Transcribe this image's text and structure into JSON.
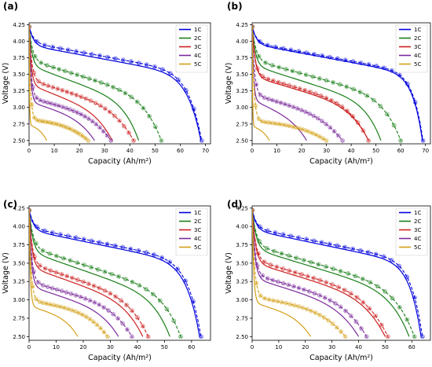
{
  "chart_data": [
    {
      "type": "line",
      "panel_label": "(a)",
      "xlabel": "Capacity (Ah/m²)",
      "ylabel": "Voltage (V)",
      "xlim": [
        0,
        72
      ],
      "ylim": [
        2.45,
        4.28
      ],
      "xticks": [
        0,
        10,
        20,
        30,
        40,
        50,
        60,
        70
      ],
      "yticks": [
        2.5,
        2.75,
        3.0,
        3.25,
        3.5,
        3.75,
        4.0,
        4.25
      ],
      "grid": false,
      "legend_position": "top-right",
      "series": [
        {
          "name": "1C",
          "color": "#0000dd",
          "end_capacity": 68.5,
          "fit_end_capacity": 68.2,
          "v_plateau": 3.98,
          "v_knee": 3.5,
          "shape": 6,
          "fit_dv": -0.04
        },
        {
          "name": "2C",
          "color": "#1a7f1a",
          "end_capacity": 52.5,
          "fit_end_capacity": 43.5,
          "v_plateau": 3.72,
          "v_knee": 3.1,
          "shape": 3.5,
          "fit_dv": -0.08
        },
        {
          "name": "3C",
          "color": "#cc2222",
          "end_capacity": 41.5,
          "fit_end_capacity": 33.0,
          "v_plateau": 3.42,
          "v_knee": 2.92,
          "shape": 2.5,
          "fit_dv": -0.07
        },
        {
          "name": "4C",
          "color": "#7b2a9c",
          "end_capacity": 32.5,
          "fit_end_capacity": 26.0,
          "v_plateau": 3.15,
          "v_knee": 2.82,
          "shape": 2.0,
          "fit_dv": -0.06
        },
        {
          "name": "5C",
          "color": "#d4a017",
          "end_capacity": 23.5,
          "fit_end_capacity": 7.0,
          "v_plateau": 2.82,
          "v_knee": 2.7,
          "shape": 1.5,
          "fit_dv": -0.08
        }
      ]
    },
    {
      "type": "line",
      "panel_label": "(b)",
      "xlabel": "Capacity (Ah/m²)",
      "ylabel": "Voltage (V)",
      "xlim": [
        0,
        72
      ],
      "ylim": [
        2.45,
        4.28
      ],
      "xticks": [
        0,
        10,
        20,
        30,
        40,
        50,
        60,
        70
      ],
      "yticks": [
        2.5,
        2.75,
        3.0,
        3.25,
        3.5,
        3.75,
        4.0,
        4.25
      ],
      "grid": false,
      "legend_position": "top-right",
      "series": [
        {
          "name": "1C",
          "color": "#0000dd",
          "end_capacity": 69.0,
          "fit_end_capacity": 68.8,
          "v_plateau": 3.98,
          "v_knee": 3.5,
          "shape": 8,
          "fit_dv": -0.02
        },
        {
          "name": "2C",
          "color": "#1a7f1a",
          "end_capacity": 60.0,
          "fit_end_capacity": 52.0,
          "v_plateau": 3.72,
          "v_knee": 3.1,
          "shape": 4,
          "fit_dv": -0.08
        },
        {
          "name": "3C",
          "color": "#cc2222",
          "end_capacity": 47.0,
          "fit_end_capacity": 47.0,
          "v_plateau": 3.5,
          "v_knee": 2.98,
          "shape": 3,
          "fit_dv": -0.03
        },
        {
          "name": "4C",
          "color": "#7b2a9c",
          "end_capacity": 36.5,
          "fit_end_capacity": 22.0,
          "v_plateau": 3.2,
          "v_knee": 2.8,
          "shape": 2,
          "fit_dv": -0.08
        },
        {
          "name": "5C",
          "color": "#d4a017",
          "end_capacity": 30.0,
          "fit_end_capacity": 7.0,
          "v_plateau": 2.8,
          "v_knee": 2.68,
          "shape": 1.5,
          "fit_dv": -0.08
        }
      ]
    },
    {
      "type": "line",
      "panel_label": "(c)",
      "xlabel": "Capacity (Ah/m²)",
      "ylabel": "Voltage (V)",
      "xlim": [
        0,
        67
      ],
      "ylim": [
        2.45,
        4.28
      ],
      "xticks": [
        0,
        10,
        20,
        30,
        40,
        50,
        60
      ],
      "yticks": [
        2.5,
        2.75,
        3.0,
        3.25,
        3.5,
        3.75,
        4.0,
        4.25
      ],
      "grid": false,
      "legend_position": "top-right",
      "series": [
        {
          "name": "1C",
          "color": "#0000dd",
          "end_capacity": 63.5,
          "fit_end_capacity": 63.0,
          "v_plateau": 3.98,
          "v_knee": 3.5,
          "shape": 6,
          "fit_dv": -0.03
        },
        {
          "name": "2C",
          "color": "#1a7f1a",
          "end_capacity": 56.0,
          "fit_end_capacity": 52.0,
          "v_plateau": 3.72,
          "v_knee": 3.05,
          "shape": 4,
          "fit_dv": -0.06
        },
        {
          "name": "3C",
          "color": "#cc2222",
          "end_capacity": 44.0,
          "fit_end_capacity": 42.0,
          "v_plateau": 3.5,
          "v_knee": 2.95,
          "shape": 3,
          "fit_dv": -0.05
        },
        {
          "name": "4C",
          "color": "#7b2a9c",
          "end_capacity": 38.0,
          "fit_end_capacity": 33.0,
          "v_plateau": 3.25,
          "v_knee": 2.85,
          "shape": 2.5,
          "fit_dv": -0.06
        },
        {
          "name": "5C",
          "color": "#d4a017",
          "end_capacity": 29.0,
          "fit_end_capacity": 18.0,
          "v_plateau": 3.0,
          "v_knee": 2.78,
          "shape": 2,
          "fit_dv": -0.08
        }
      ]
    },
    {
      "type": "line",
      "panel_label": "(d)",
      "xlabel": "Capacity (Ah/m²)",
      "ylabel": "Voltage (V)",
      "xlim": [
        0,
        67
      ],
      "ylim": [
        2.45,
        4.28
      ],
      "xticks": [
        0,
        10,
        20,
        30,
        40,
        50,
        60
      ],
      "yticks": [
        2.5,
        2.75,
        3.0,
        3.25,
        3.5,
        3.75,
        4.0,
        4.25
      ],
      "grid": false,
      "legend_position": "top-right",
      "series": [
        {
          "name": "1C",
          "color": "#0000dd",
          "end_capacity": 64.0,
          "fit_end_capacity": 63.5,
          "v_plateau": 3.98,
          "v_knee": 3.5,
          "shape": 7,
          "fit_dv": -0.03
        },
        {
          "name": "2C",
          "color": "#1a7f1a",
          "end_capacity": 61.0,
          "fit_end_capacity": 59.0,
          "v_plateau": 3.75,
          "v_knee": 3.1,
          "shape": 4,
          "fit_dv": -0.05
        },
        {
          "name": "3C",
          "color": "#cc2222",
          "end_capacity": 51.0,
          "fit_end_capacity": 50.0,
          "v_plateau": 3.55,
          "v_knee": 3.0,
          "shape": 3,
          "fit_dv": -0.04
        },
        {
          "name": "4C",
          "color": "#7b2a9c",
          "end_capacity": 43.0,
          "fit_end_capacity": 40.0,
          "v_plateau": 3.35,
          "v_knee": 2.9,
          "shape": 2.5,
          "fit_dv": -0.05
        },
        {
          "name": "5C",
          "color": "#d4a017",
          "end_capacity": 35.0,
          "fit_end_capacity": 22.0,
          "v_plateau": 3.05,
          "v_knee": 2.8,
          "shape": 2,
          "fit_dv": -0.08
        }
      ]
    }
  ]
}
